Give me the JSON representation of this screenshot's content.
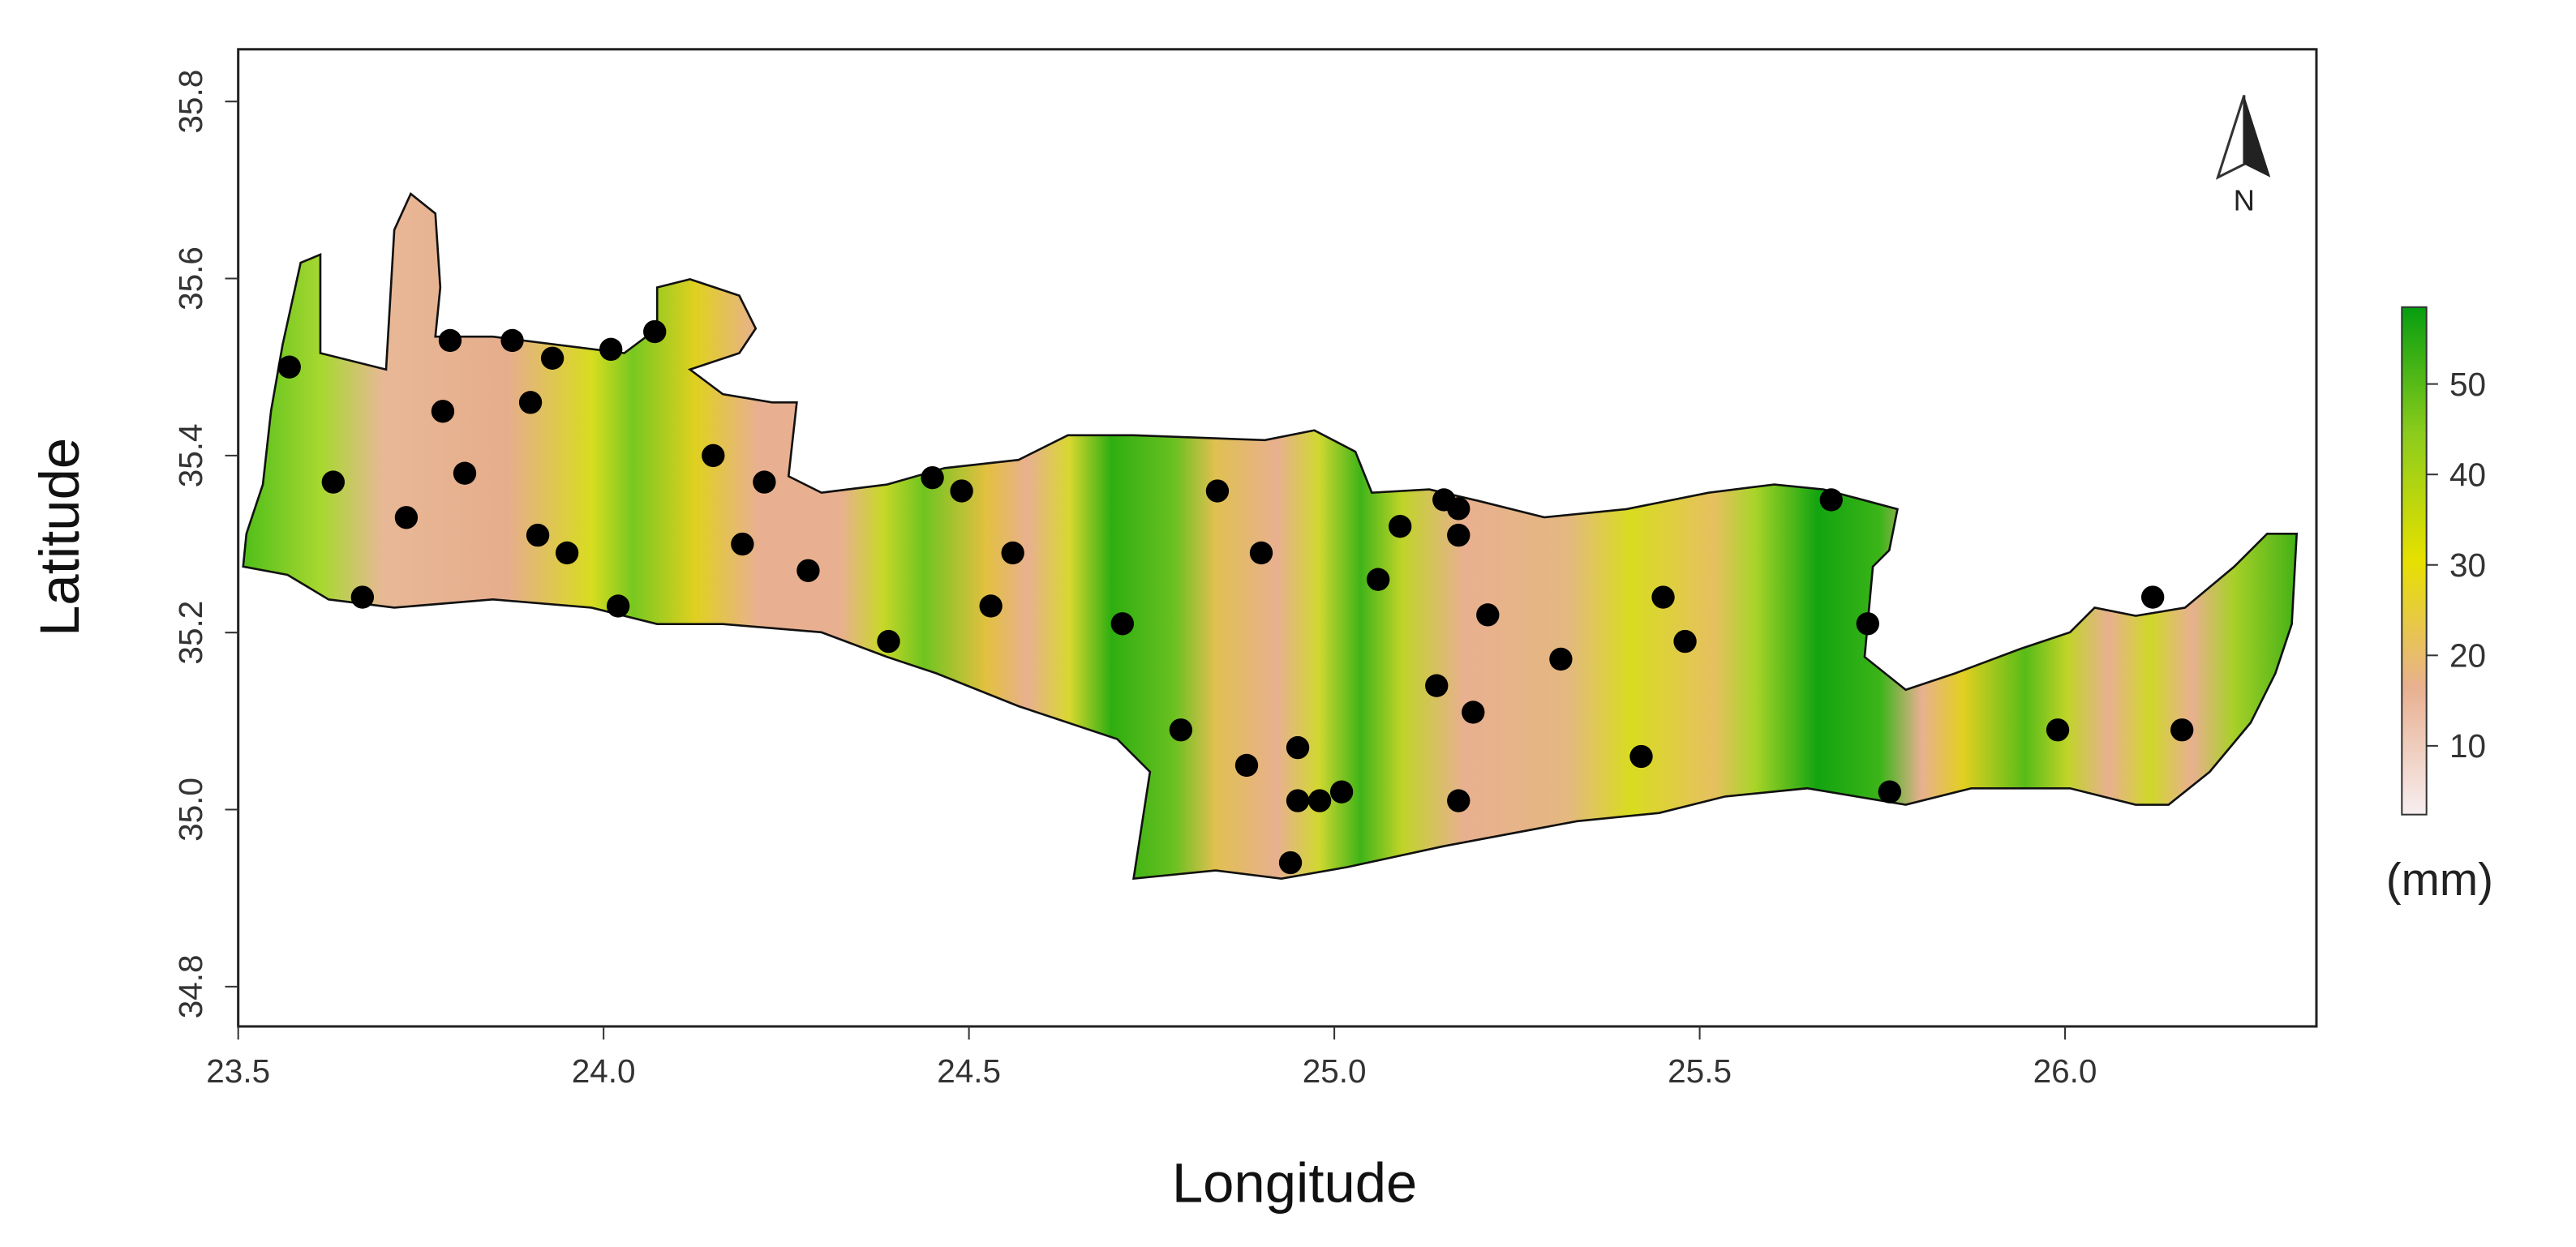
{
  "chart_data": {
    "type": "scatter",
    "xlabel": "Longitude",
    "ylabel": "Latitude",
    "xlim": [
      23.5,
      26.344
    ],
    "ylim": [
      34.755,
      35.859
    ],
    "xticks": [
      23.5,
      {
        "value": 24,
        "label": "24.0"
      },
      24.5,
      {
        "value": 25,
        "label": "25.0"
      },
      25.5,
      {
        "value": 26,
        "label": "26.0"
      }
    ],
    "yticks": [
      34.8,
      {
        "value": 35,
        "label": "35.0"
      },
      35.2,
      35.4,
      35.6,
      35.8
    ],
    "color": "#000000",
    "x": [
      23.57,
      23.79,
      23.875,
      23.93,
      24.01,
      24.07,
      23.78,
      23.9,
      23.63,
      23.81,
      23.73,
      23.91,
      23.95,
      23.67,
      24.02,
      24.15,
      24.22,
      24.19,
      24.28,
      24.39,
      24.45,
      24.49,
      24.56,
      24.53,
      24.71,
      24.84,
      24.9,
      24.79,
      24.88,
      24.95,
      24.95,
      24.98,
      25.01,
      24.94,
      25.09,
      25.15,
      25.17,
      25.17,
      25.06,
      25.21,
      25.31,
      25.14,
      25.19,
      25.17,
      25.45,
      25.48,
      25.42,
      25.68,
      25.73,
      25.76,
      26.12,
      25.99,
      26.16
    ],
    "values": [
      35.5,
      35.53,
      35.53,
      35.51,
      35.52,
      35.54,
      35.45,
      35.46,
      35.37,
      35.38,
      35.33,
      35.31,
      35.29,
      35.24,
      35.23,
      35.4,
      35.37,
      35.3,
      35.27,
      35.19,
      35.375,
      35.36,
      35.29,
      35.23,
      35.21,
      35.36,
      35.29,
      35.09,
      35.05,
      35.07,
      35.01,
      35.01,
      35.02,
      34.94,
      35.32,
      35.35,
      35.34,
      35.31,
      35.26,
      35.22,
      35.17,
      35.14,
      35.11,
      35.01,
      35.24,
      35.19,
      35.06,
      35.35,
      35.21,
      35.02,
      35.24,
      35.09,
      35.09
    ],
    "north_label": "N",
    "colorbar": {
      "label": "(mm)",
      "lim": [
        2.4,
        58.5
      ],
      "ticks": [
        10,
        20,
        30,
        40,
        50
      ],
      "colors": [
        "#f7eef0",
        "#e8b090",
        "#e6e000",
        "#8ccc1c",
        "#069e10"
      ]
    }
  }
}
